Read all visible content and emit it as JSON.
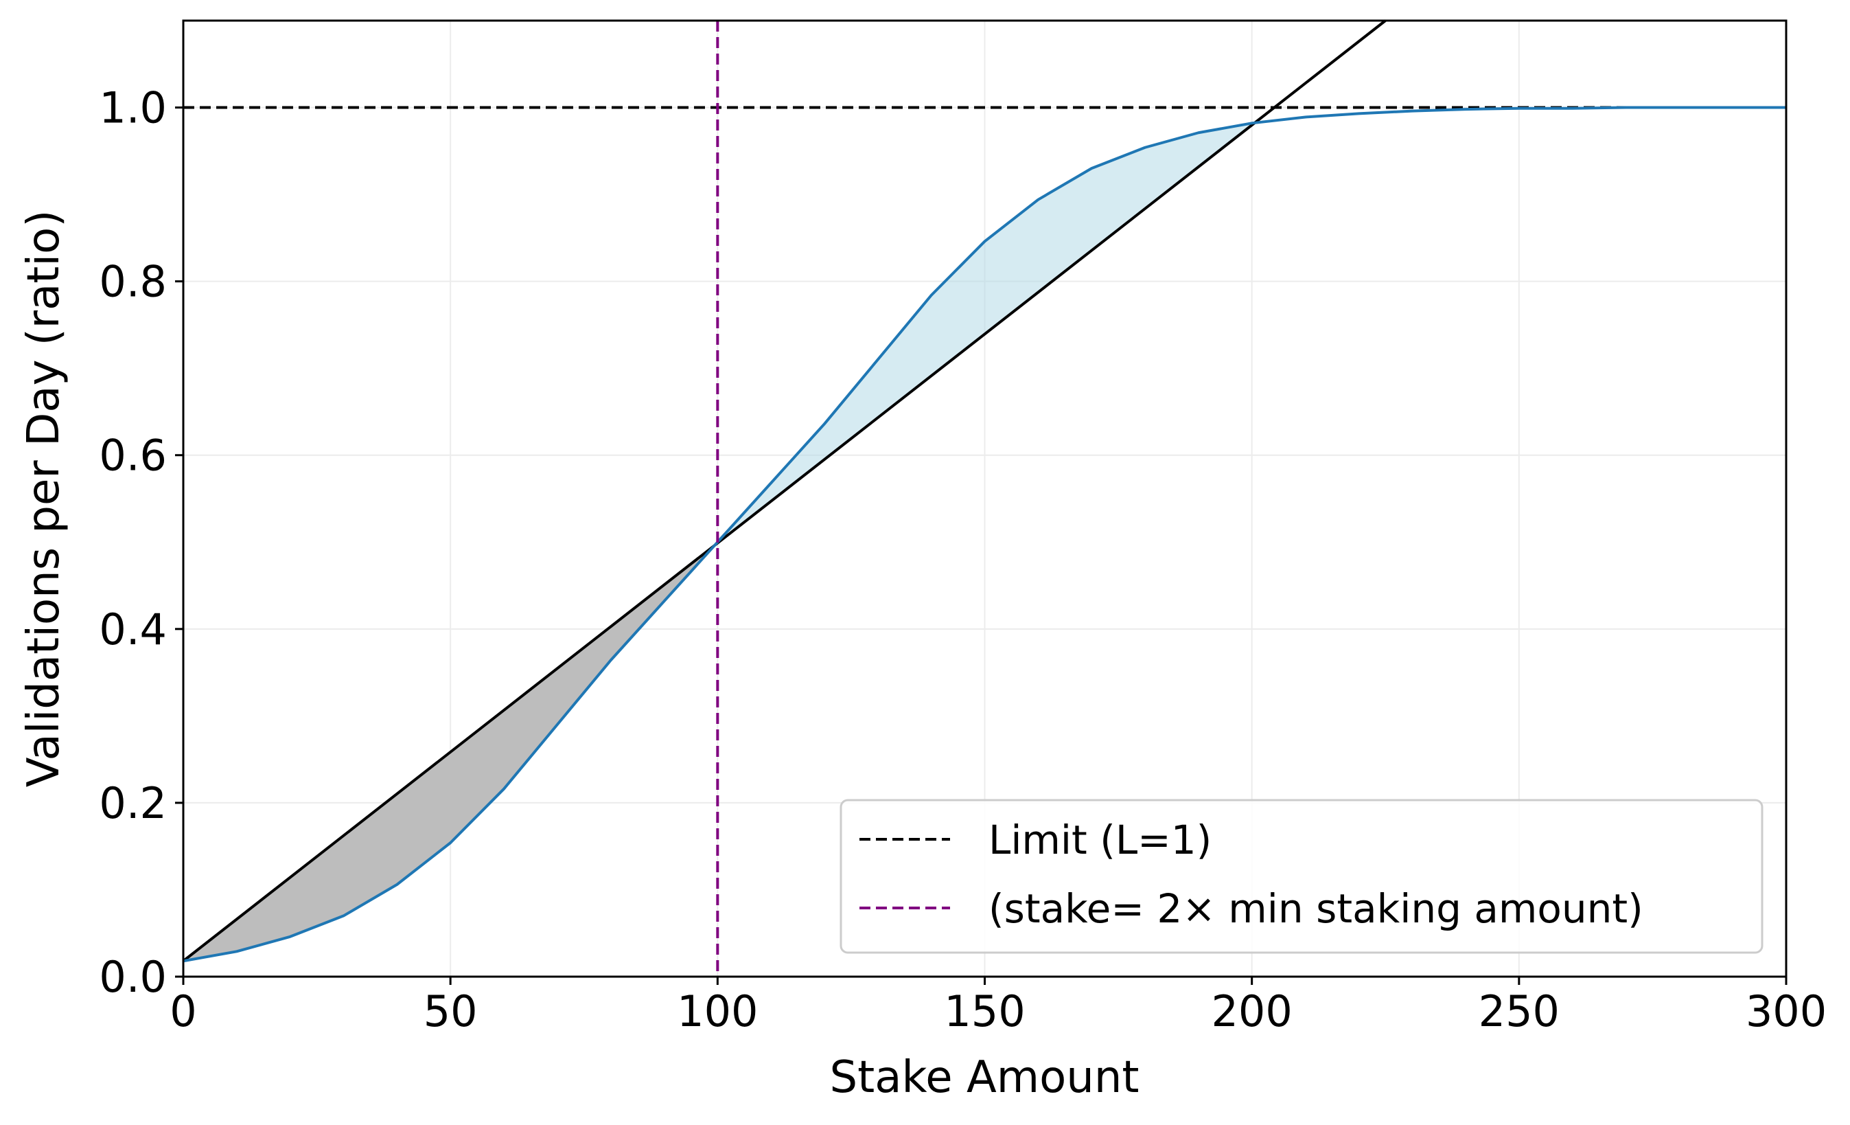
{
  "chart_data": {
    "type": "line",
    "xlabel": "Stake Amount",
    "ylabel": "Validations per Day (ratio)",
    "xlim": [
      0,
      300
    ],
    "ylim": [
      0,
      1.1
    ],
    "x_ticks": [
      0,
      50,
      100,
      150,
      200,
      250,
      300
    ],
    "y_ticks": [
      0.0,
      0.2,
      0.4,
      0.6,
      0.8,
      1.0
    ],
    "x_tick_labels": [
      "0",
      "50",
      "100",
      "150",
      "200",
      "250",
      "300"
    ],
    "y_tick_labels": [
      "0.0",
      "0.2",
      "0.4",
      "0.6",
      "0.8",
      "1.0"
    ],
    "grid": true,
    "legend_position": "lower-right",
    "series": [
      {
        "role": "sigmoid-curve",
        "color": "#1f77b4",
        "style": "solid",
        "x": [
          0,
          10,
          20,
          30,
          40,
          50,
          60,
          70,
          80,
          90,
          100,
          110,
          120,
          130,
          140,
          150,
          160,
          170,
          180,
          190,
          200,
          210,
          220,
          230,
          240,
          250,
          260,
          270,
          280,
          290,
          300
        ],
        "y": [
          0.018,
          0.029,
          0.046,
          0.07,
          0.106,
          0.154,
          0.216,
          0.29,
          0.364,
          0.432,
          0.5,
          0.568,
          0.636,
          0.71,
          0.784,
          0.846,
          0.894,
          0.93,
          0.954,
          0.971,
          0.982,
          0.989,
          0.993,
          0.996,
          0.998,
          0.999,
          0.999,
          1.0,
          1.0,
          1.0,
          1.0
        ]
      },
      {
        "role": "linear-line",
        "color": "#000000",
        "style": "solid",
        "x": [
          0,
          225
        ],
        "y": [
          0.018,
          1.1
        ]
      },
      {
        "name": "Limit (L=1)",
        "color": "#000000",
        "style": "dashed",
        "y_const": 1.0
      },
      {
        "name": "(stake= 2× min staking amount)",
        "color": "#800080",
        "style": "dashed",
        "x_const": 100
      }
    ],
    "fills": [
      {
        "between": "linear-line over sigmoid-curve",
        "x_range": [
          0,
          100
        ],
        "color": "#bdbdbd"
      },
      {
        "between": "sigmoid-curve over linear-line",
        "x_range": [
          100,
          200
        ],
        "color": "#add8e6"
      }
    ]
  }
}
